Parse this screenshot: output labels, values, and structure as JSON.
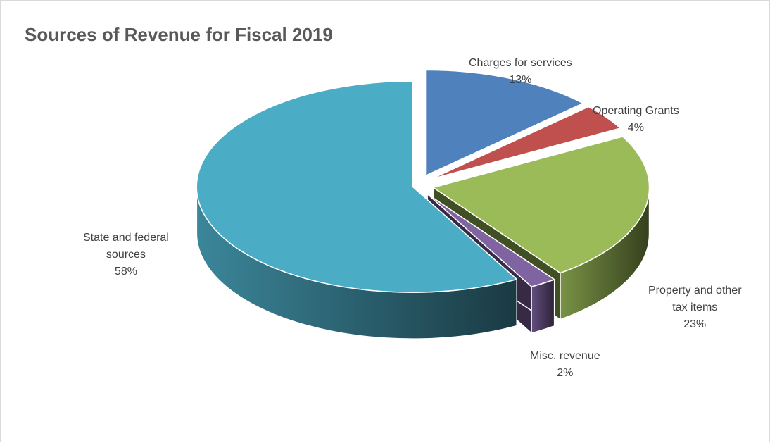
{
  "chart_data": {
    "type": "pie",
    "title": "Sources of Revenue for Fiscal 2019",
    "categories": [
      "Charges for services",
      "Operating Grants",
      "Property and other tax items",
      "Misc. revenue",
      "State and federal sources"
    ],
    "values": [
      13,
      4,
      23,
      2,
      58
    ],
    "value_labels": [
      "13%",
      "4%",
      "23%",
      "2%",
      "58%"
    ],
    "colors": [
      "#4f81bd",
      "#c0504d",
      "#9bbb59",
      "#8064a2",
      "#4bacc6"
    ],
    "style": "3d-exploded",
    "legend": "none"
  },
  "labels": [
    {
      "lines": [
        "Charges for services"
      ],
      "pct": "13%"
    },
    {
      "lines": [
        "Operating Grants"
      ],
      "pct": "4%"
    },
    {
      "lines": [
        "Property and other",
        "tax items"
      ],
      "pct": "23%"
    },
    {
      "lines": [
        "Misc. revenue"
      ],
      "pct": "2%"
    },
    {
      "lines": [
        "State and federal",
        "sources"
      ],
      "pct": "58%"
    }
  ]
}
